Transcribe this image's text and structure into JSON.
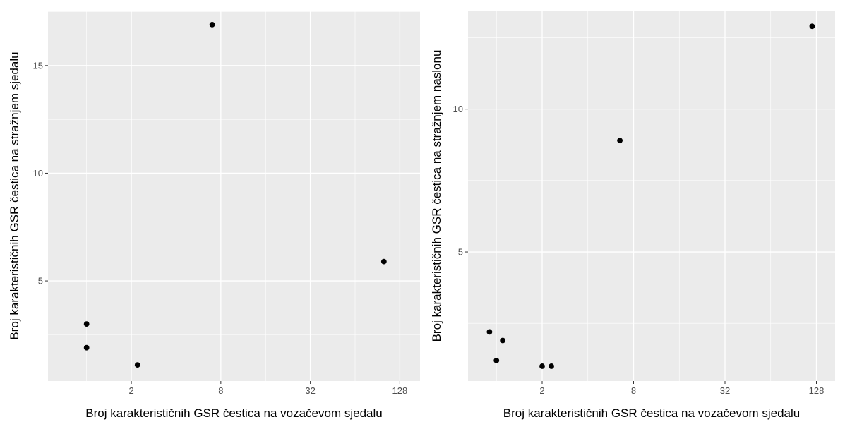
{
  "chart_data": [
    {
      "type": "scatter",
      "x_scale": "log2",
      "xlabel": "Broj karakterističnih GSR čestica na vozačevom sjedalu",
      "ylabel": "Broj karakterističnih GSR čestica na stražnjem sjedalu",
      "xlim": [
        0.55,
        175
      ],
      "ylim": [
        0.35,
        17.55
      ],
      "x_ticks": [
        2,
        8,
        32,
        128
      ],
      "x_tick_labels": [
        "2",
        "8",
        "32",
        "128"
      ],
      "y_ticks": [
        5,
        10,
        15
      ],
      "y_tick_labels": [
        "5",
        "10",
        "15"
      ],
      "grid": true,
      "background": "#ebebeb",
      "gridline_color": "#ffffff",
      "point_color": "#000000",
      "points": [
        {
          "x": 1,
          "y": 3
        },
        {
          "x": 1,
          "y": 1.9
        },
        {
          "x": 2.2,
          "y": 1.1
        },
        {
          "x": 7,
          "y": 16.9
        },
        {
          "x": 100,
          "y": 5.9
        }
      ]
    },
    {
      "type": "scatter",
      "x_scale": "log2",
      "xlabel": "Broj karakterističnih GSR čestica na vozačevom sjedalu",
      "ylabel": "Broj karakterističnih GSR čestica na stražnjem naslonu",
      "xlim": [
        0.65,
        170
      ],
      "ylim": [
        0.48,
        13.45
      ],
      "x_ticks": [
        2,
        8,
        32,
        128
      ],
      "x_tick_labels": [
        "2",
        "8",
        "32",
        "128"
      ],
      "y_ticks": [
        5,
        10
      ],
      "y_tick_labels": [
        "5",
        "10"
      ],
      "grid": true,
      "background": "#ebebeb",
      "gridline_color": "#ffffff",
      "point_color": "#000000",
      "points": [
        {
          "x": 0.9,
          "y": 2.2
        },
        {
          "x": 1,
          "y": 1.2
        },
        {
          "x": 1.1,
          "y": 1.9
        },
        {
          "x": 2,
          "y": 1
        },
        {
          "x": 2.3,
          "y": 1
        },
        {
          "x": 6.5,
          "y": 8.9
        },
        {
          "x": 120,
          "y": 12.9
        }
      ]
    }
  ]
}
